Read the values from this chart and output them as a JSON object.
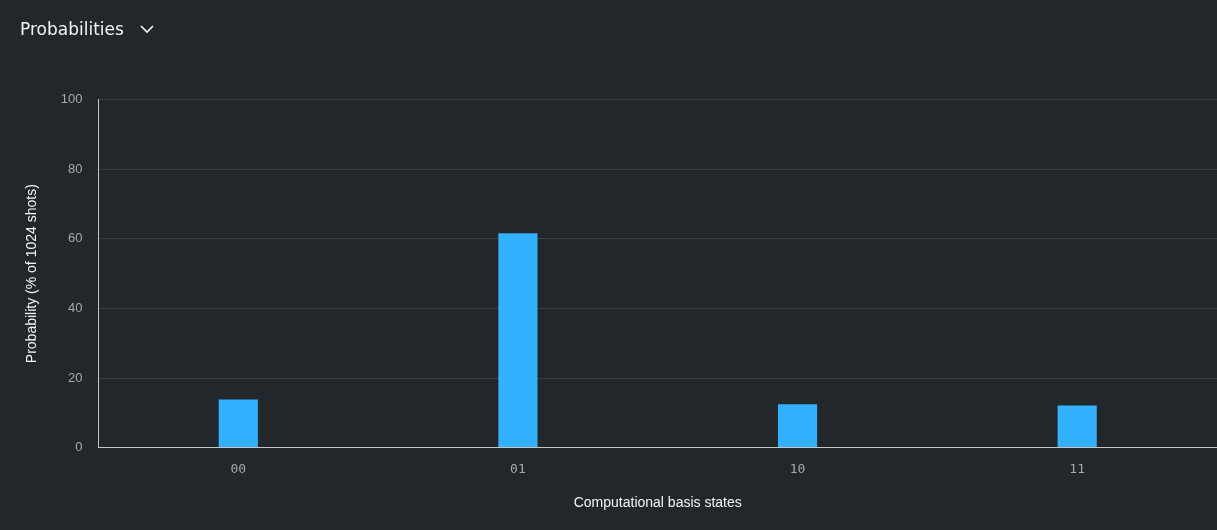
{
  "chart_data": {
    "type": "bar",
    "title": "Probabilities",
    "xlabel": "Computational basis states",
    "ylabel": "Probability (% of 1024 shots)",
    "categories": [
      "00",
      "01",
      "10",
      "11"
    ],
    "values": [
      13.8,
      61.6,
      12.5,
      12.1
    ],
    "color": "#33b1ff",
    "ylim": [
      0,
      100
    ],
    "yticks": [
      0,
      20,
      40,
      60,
      80,
      100
    ],
    "grid": "y"
  }
}
